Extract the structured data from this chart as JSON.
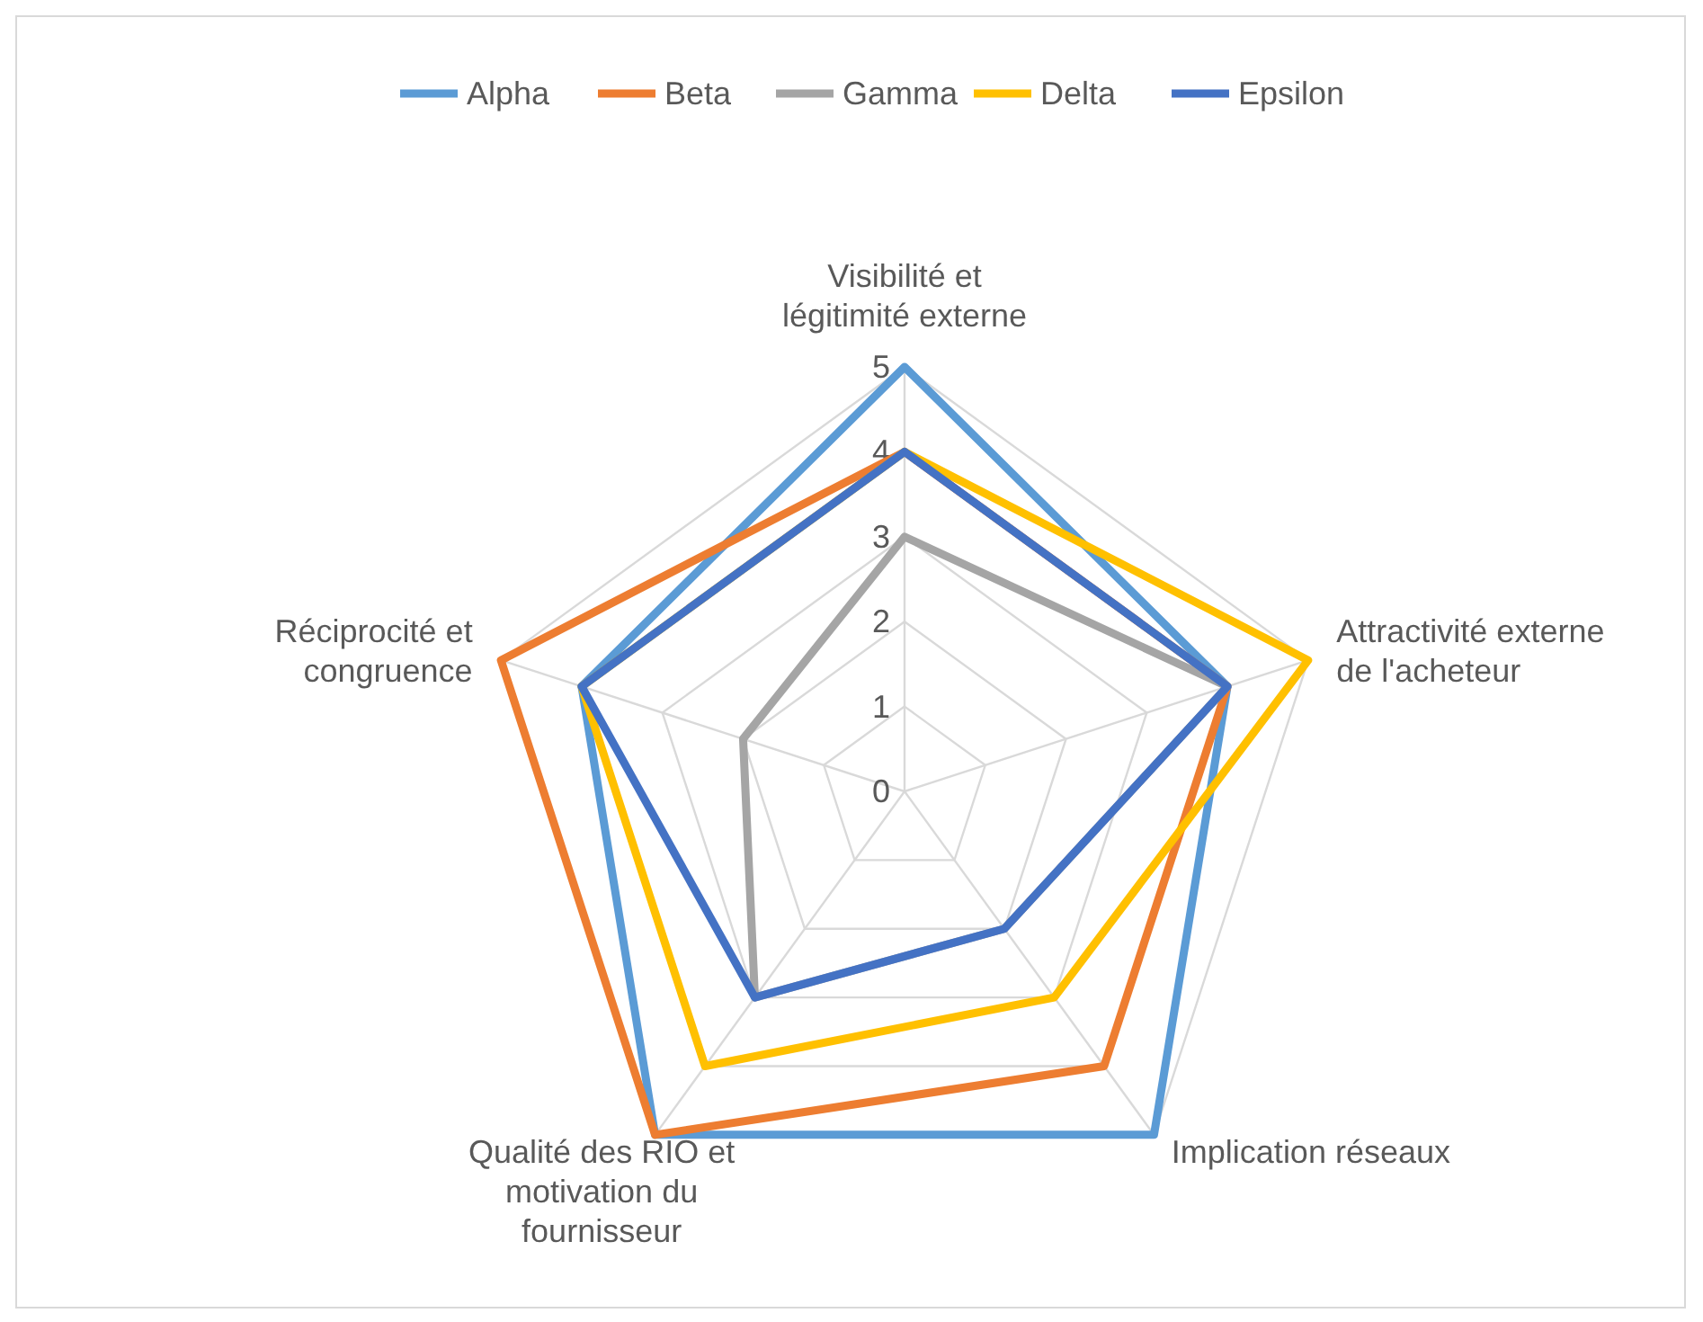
{
  "chart_data": {
    "type": "radar",
    "categories": [
      "Visibilité et légitimité externe",
      "Attractivité externe de l'acheteur",
      "Implication réseaux",
      "Qualité des RIO et motivation du fournisseur",
      "Réciprocité et congruence"
    ],
    "series": [
      {
        "name": "Alpha",
        "color": "#5b9bd5",
        "values": [
          5,
          4,
          5,
          5,
          4
        ]
      },
      {
        "name": "Beta",
        "color": "#ed7d31",
        "values": [
          4,
          4,
          4,
          5,
          5
        ]
      },
      {
        "name": "Gamma",
        "color": "#a5a5a5",
        "values": [
          3,
          4,
          2,
          3,
          2
        ]
      },
      {
        "name": "Delta",
        "color": "#ffc000",
        "values": [
          4,
          5,
          3,
          4,
          4
        ]
      },
      {
        "name": "Epsilon",
        "color": "#4472c4",
        "values": [
          4,
          4,
          2,
          3,
          4
        ]
      }
    ],
    "ylim": [
      0,
      5
    ],
    "yticks": [
      0,
      1,
      2,
      3,
      4,
      5
    ],
    "grid": true,
    "legend": "top",
    "marker": "none",
    "line_style": "solid"
  }
}
